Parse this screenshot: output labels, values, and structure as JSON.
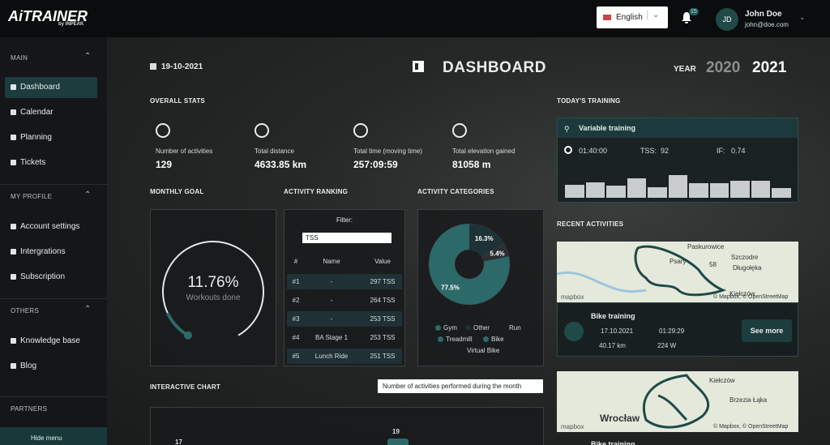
{
  "header": {
    "logo": "AiTRAINER",
    "logo_sub": "by INPEAK",
    "language": "English",
    "notifications": "15",
    "user_initials": "JD",
    "user_name": "John Doe",
    "user_email": "john@doe.com"
  },
  "sidebar": {
    "sections": [
      {
        "title": "MAIN",
        "items": [
          "Dashboard",
          "Calendar",
          "Planning",
          "Tickets"
        ]
      },
      {
        "title": "MY PROFILE",
        "items": [
          "Account settings",
          "Intergrations",
          "Subscription"
        ]
      },
      {
        "title": "OTHERS",
        "items": [
          "Knowledge base",
          "Blog"
        ]
      },
      {
        "title": "PARTNERS"
      }
    ],
    "hide_menu": "Hide menu"
  },
  "dashboard": {
    "date": "19-10-2021",
    "title": "DASHBOARD",
    "year_label": "YEAR",
    "years": [
      "2020",
      "2021"
    ]
  },
  "overall_stats": {
    "title": "OVERALL STATS",
    "stats": [
      {
        "label": "Number of activities",
        "value": "129"
      },
      {
        "label": "Total distance",
        "value": "4633.85 km"
      },
      {
        "label": "Total time (moving time)",
        "value": "257:09:59"
      },
      {
        "label": "Total elevation gained",
        "value": "81058 m"
      }
    ]
  },
  "todays_training": {
    "title": "TODAY'S TRAINING",
    "name": "Variable training",
    "duration": "01:40:00",
    "tss_label": "TSS:",
    "tss": "92",
    "if_label": "IF:",
    "if": "0.74",
    "intervals": [
      0.55,
      0.65,
      0.5,
      0.8,
      0.45,
      0.95,
      0.6,
      0.6,
      0.7,
      0.7,
      0.4
    ]
  },
  "monthly_goal": {
    "title": "MONTHLY GOAL",
    "percent": 11.76,
    "percent_label": "11.76%",
    "caption": "Workouts done"
  },
  "activity_ranking": {
    "title": "ACTIVITY RANKING",
    "filter_label": "Filter:",
    "filter_value": "TSS",
    "columns": [
      "#",
      "Name",
      "Value"
    ],
    "rows": [
      [
        "#1",
        "-",
        "297 TSS"
      ],
      [
        "#2",
        "-",
        "264 TSS"
      ],
      [
        "#3",
        "-",
        "253 TSS"
      ],
      [
        "#4",
        "BA Stage 1",
        "253 TSS"
      ],
      [
        "#5",
        "Lunch Ride",
        "251 TSS"
      ]
    ]
  },
  "activity_categories": {
    "title": "ACTIVITY CATEGORIES",
    "segments": [
      {
        "value": 16.3,
        "label": "16.3%",
        "color": "#1d3236"
      },
      {
        "value": 5.4,
        "label": "5.4%",
        "color": "#2a2f31"
      },
      {
        "value": 77.5,
        "label": "77.5%",
        "color": "#2c6a69"
      }
    ],
    "legend": [
      {
        "name": "Gym",
        "color": "#2c6a69"
      },
      {
        "name": "Other",
        "color": "#1d3236"
      },
      {
        "name": "Run"
      },
      {
        "name": "Treadmill",
        "color": "#2c6a69"
      },
      {
        "name": "Bike",
        "color": "#2c6a69"
      },
      {
        "name": "Virtual Bike"
      }
    ]
  },
  "interactive_chart": {
    "title": "INTERACTIVE CHART",
    "tooltip": "Number of activities performed during the month",
    "values": [
      17,
      19
    ]
  },
  "recent_activities": {
    "title": "RECENT ACTIVITIES",
    "map_brand": "mapbox",
    "attribution": "© Mapbox, © OpenStreetMap",
    "cards": [
      {
        "map_labels": [
          "Paskurowice",
          "Psary",
          "Szczodre",
          "Długołęka",
          "Kiełczów",
          "58"
        ],
        "name": "Bike training",
        "date": "17.10.2021",
        "duration": "01:29:29",
        "distance": "40.17 km",
        "power": "224 W",
        "button": "See more"
      },
      {
        "map_labels": [
          "Kiełczów",
          "Brzezia Łąka",
          "Wrocław"
        ],
        "name": "Bike training"
      }
    ]
  }
}
